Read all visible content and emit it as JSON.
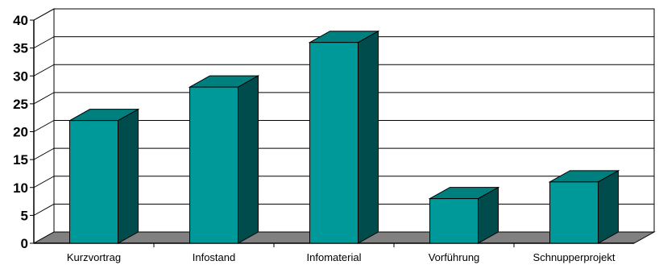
{
  "chart_data": {
    "type": "bar",
    "title": "",
    "xlabel": "",
    "ylabel": "",
    "categories": [
      "Kurzvortrag",
      "Infostand",
      "Infomaterial",
      "Vorführung",
      "Schnupperprojekt"
    ],
    "values": [
      22,
      28,
      36,
      8,
      11
    ],
    "ylim": [
      0,
      40
    ],
    "yticks": [
      0,
      5,
      10,
      15,
      20,
      25,
      30,
      35,
      40
    ],
    "grid": true,
    "style": "3d-columns",
    "colors": {
      "bar_front": "#009999",
      "bar_top": "#007f7f",
      "bar_side": "#004c4c",
      "floor": "#808080"
    }
  }
}
